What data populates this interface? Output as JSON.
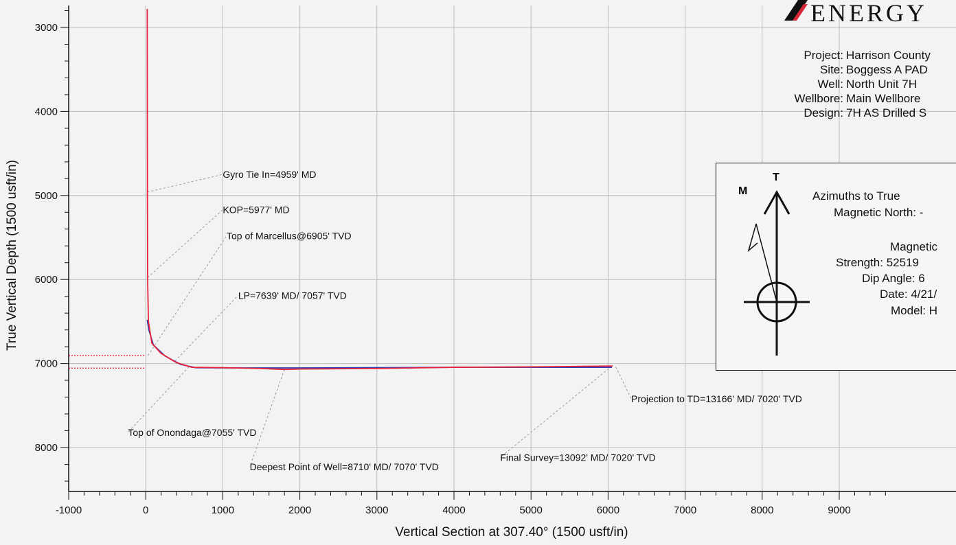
{
  "company": {
    "logo_text": "ENERGY"
  },
  "well_info": [
    {
      "label": "Project:",
      "value": "Harrison County"
    },
    {
      "label": "Site:",
      "value": "Boggess A PAD"
    },
    {
      "label": "Well:",
      "value": "North Unit 7H"
    },
    {
      "label": "Wellbore:",
      "value": "Main Wellbore"
    },
    {
      "label": "Design:",
      "value": "7H AS Drilled S"
    }
  ],
  "north_box": {
    "t_label": "T",
    "m_label": "M",
    "azimuths": "Azimuths to True",
    "magnetic_north": "Magnetic North: -",
    "magnetic_field": "Magnetic",
    "strength": "Strength: 52519",
    "dip_angle": "Dip Angle: 6",
    "date": "Date: 4/21/",
    "model": "Model: H"
  },
  "colors": {
    "survey": "#e8233a",
    "plan": "#2f3fb8",
    "leader": "#9a9a9a",
    "grid": "#bdbdbd",
    "marker": "#e8233a"
  },
  "chart_data": {
    "type": "line",
    "xlabel": "Vertical Section at 307.40° (1500 usft/in)",
    "ylabel": "True Vertical Depth (1500 usft/in)",
    "xlim": [
      -1000,
      9600
    ],
    "ylim": [
      2750,
      8480
    ],
    "y_inverted": true,
    "x_ticks": [
      -1000,
      0,
      1000,
      2000,
      3000,
      4000,
      5000,
      6000,
      7000,
      8000,
      9000
    ],
    "y_ticks": [
      3000,
      4000,
      5000,
      6000,
      7000,
      8000
    ],
    "grid": true,
    "series": [
      {
        "role": "as-drilled",
        "points": [
          [
            20,
            2780
          ],
          [
            22,
            5000
          ],
          [
            25,
            6000
          ],
          [
            35,
            6500
          ],
          [
            80,
            6760
          ],
          [
            200,
            6880
          ],
          [
            400,
            6990
          ],
          [
            600,
            7045
          ],
          [
            1000,
            7050
          ],
          [
            1500,
            7060
          ],
          [
            1800,
            7070
          ],
          [
            2000,
            7065
          ],
          [
            3000,
            7060
          ],
          [
            4000,
            7045
          ],
          [
            5000,
            7040
          ],
          [
            6000,
            7030
          ],
          [
            6060,
            7030
          ]
        ]
      },
      {
        "role": "plan",
        "points": [
          [
            20,
            6480
          ],
          [
            40,
            6600
          ],
          [
            100,
            6780
          ],
          [
            250,
            6910
          ],
          [
            450,
            7010
          ],
          [
            650,
            7050
          ],
          [
            1000,
            7052
          ],
          [
            2000,
            7052
          ],
          [
            3000,
            7050
          ],
          [
            4000,
            7045
          ],
          [
            5000,
            7045
          ],
          [
            6000,
            7045
          ],
          [
            6050,
            7045
          ]
        ]
      }
    ],
    "formation_markers": [
      6905,
      7055
    ],
    "annotations": [
      {
        "text": "Gyro Tie In=4959' MD",
        "point": [
          20,
          4959
        ],
        "label_at": [
          1000,
          4790
        ]
      },
      {
        "text": "KOP=5977' MD",
        "point": [
          25,
          5977
        ],
        "label_at": [
          1000,
          5210
        ]
      },
      {
        "text": "Top of Marcellus@6905' TVD",
        "point": [
          30,
          6905
        ],
        "label_at": [
          1050,
          5520
        ]
      },
      {
        "text": "LP=7639' MD/ 7057' TVD",
        "point": [
          380,
          6970
        ],
        "label_at": [
          1200,
          6230
        ]
      },
      {
        "text": "Top of Onondaga@7055' TVD",
        "point": [
          560,
          7040
        ],
        "label_at": [
          -230,
          7860
        ]
      },
      {
        "text": "Deepest Point of Well=8710' MD/ 7070' TVD",
        "point": [
          1800,
          7070
        ],
        "label_at": [
          1350,
          8270
        ]
      },
      {
        "text": "Final Survey=13092' MD/ 7020' TVD",
        "point": [
          6050,
          7030
        ],
        "label_at": [
          4600,
          8160
        ]
      },
      {
        "text": "Projection to TD=13166' MD/ 7020' TVD",
        "point": [
          6100,
          7040
        ],
        "label_at": [
          6300,
          7460
        ]
      }
    ]
  }
}
